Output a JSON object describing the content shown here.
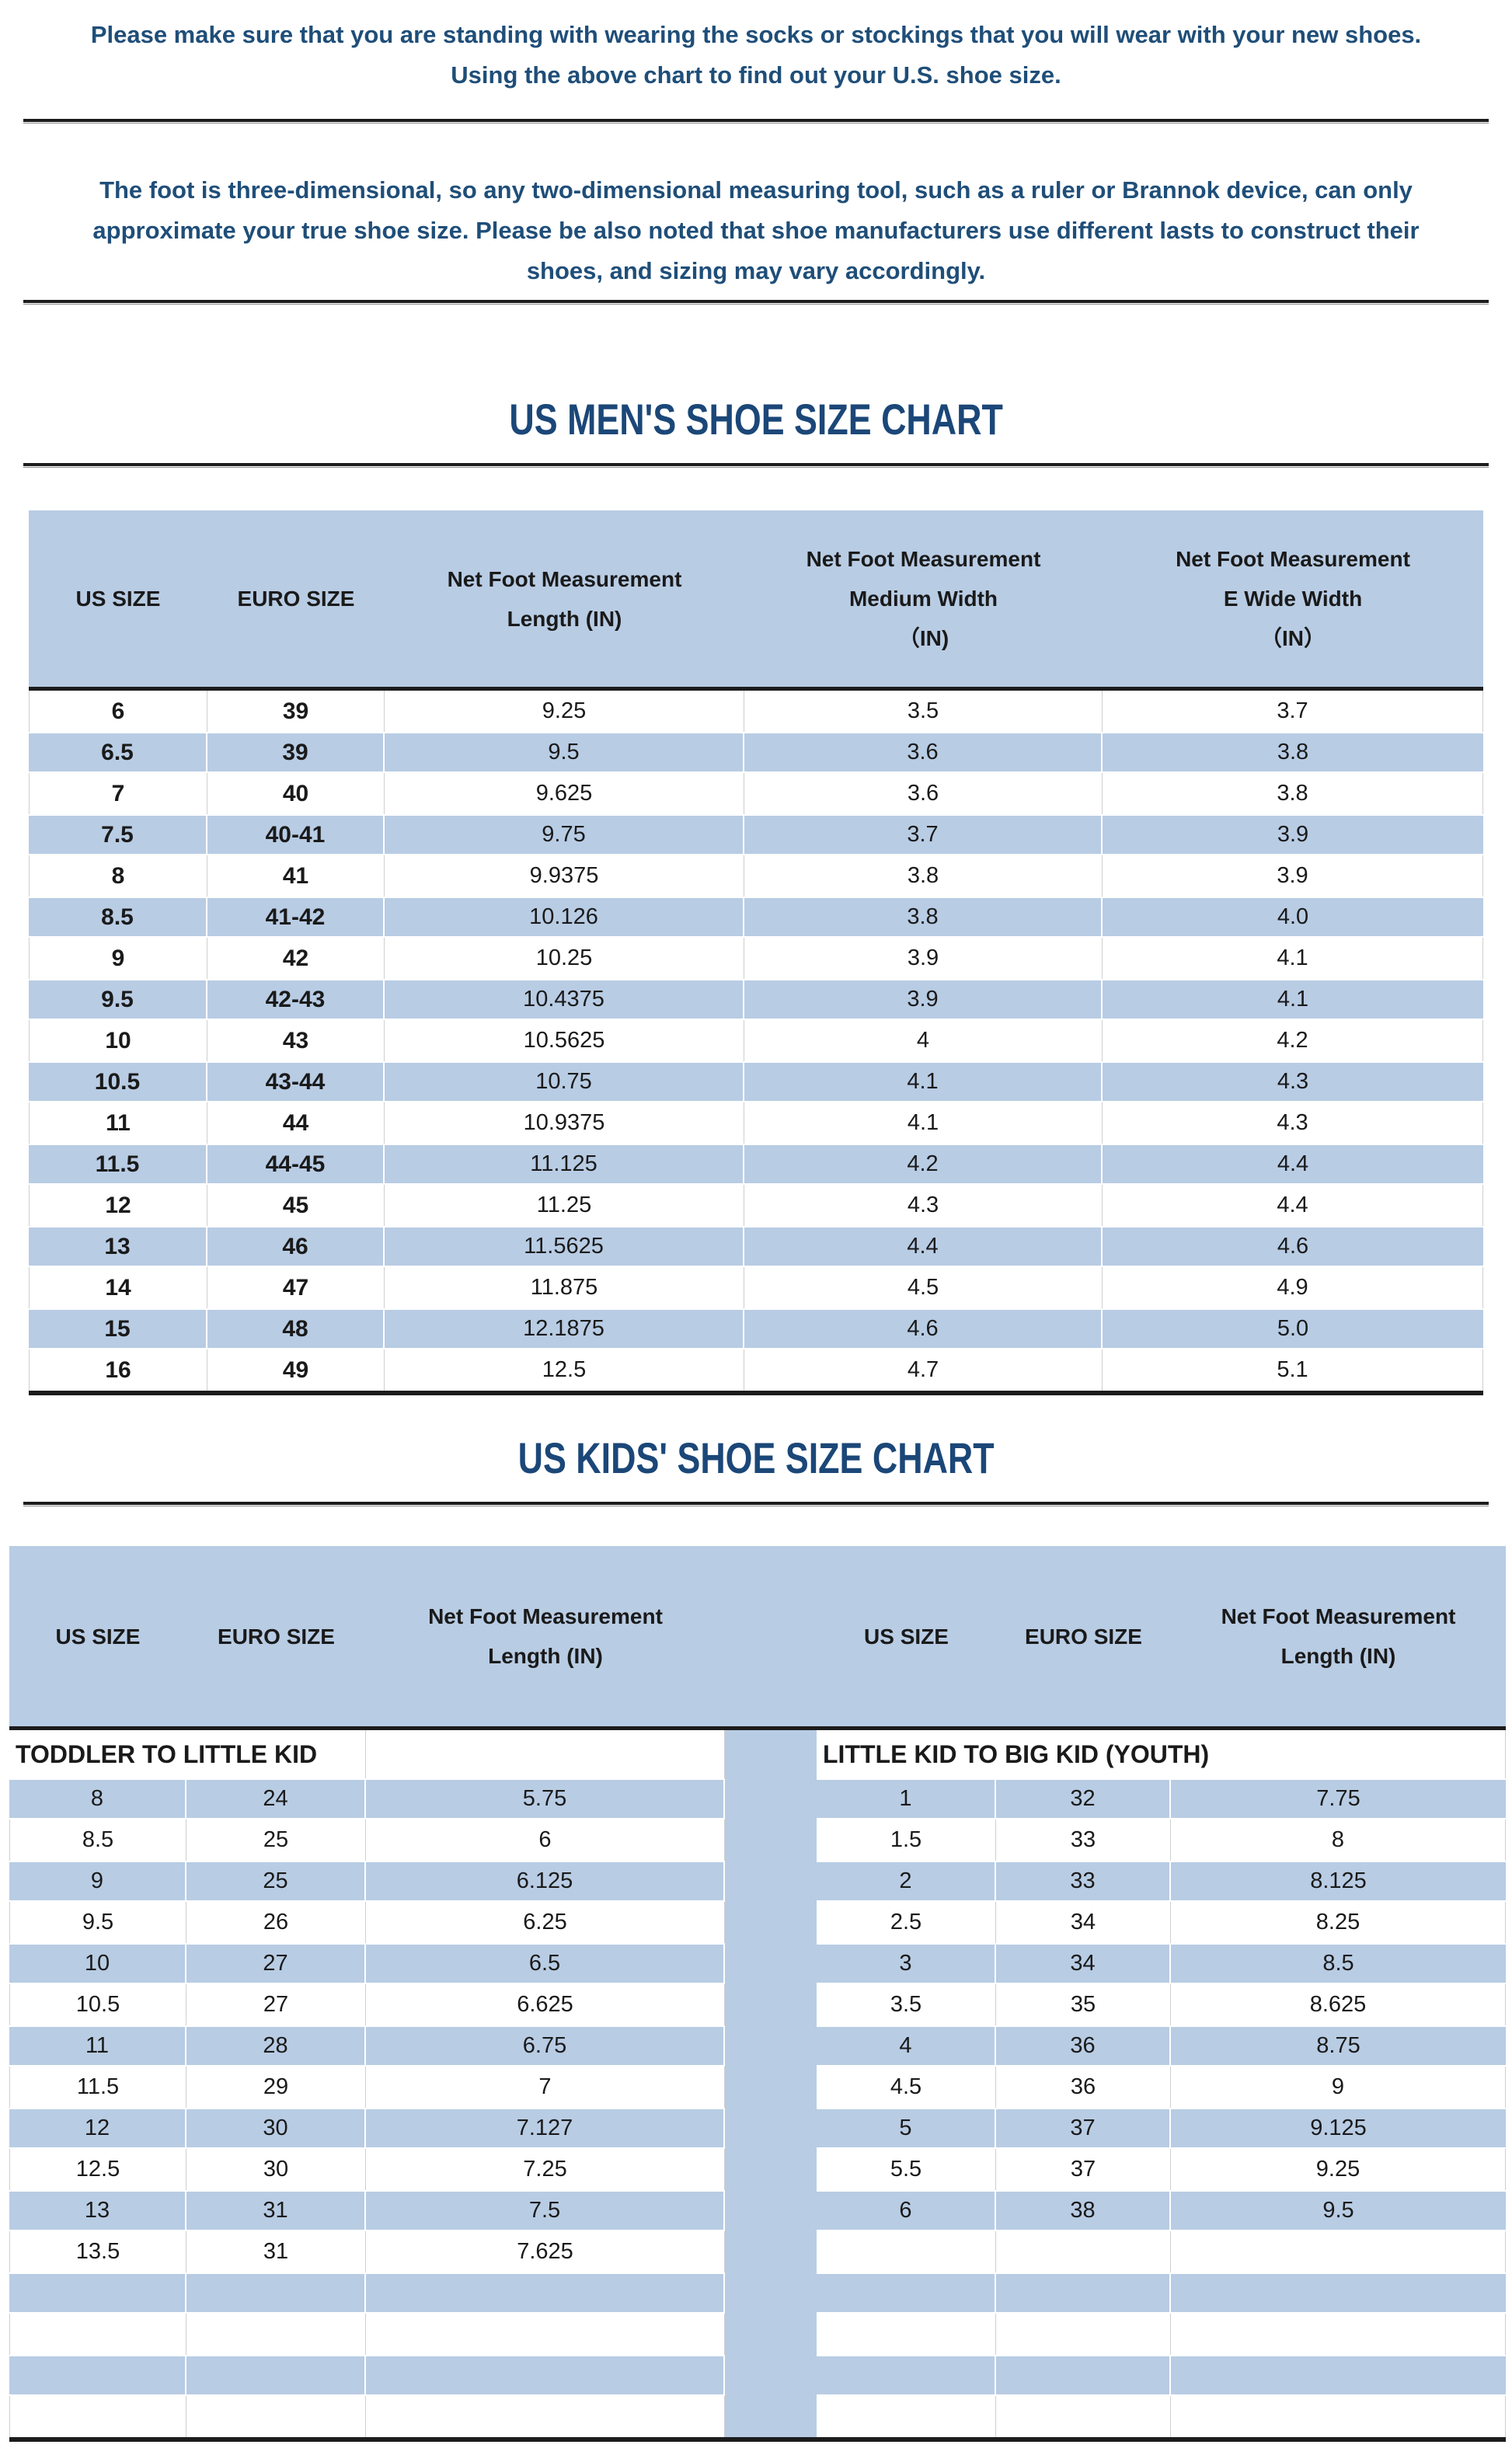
{
  "colors": {
    "accent_blue": "#b8cce4",
    "text_blue": "#1f4e79",
    "line_dark": "#1c1c1c"
  },
  "intro": {
    "p1_lines": [
      "Please make sure that you are standing with wearing the socks or stockings that you will wear with your new shoes.",
      "Using the above chart to find out your U.S. shoe size."
    ],
    "p2_lines": [
      "The foot is three-dimensional, so any two-dimensional measuring tool, such as a ruler or Brannok device, can only",
      "approximate your true shoe size. Please be also noted that shoe manufacturers use different lasts to construct their",
      "shoes, and sizing may vary accordingly."
    ]
  },
  "mens_chart": {
    "title": "US MEN'S SHOE SIZE CHART",
    "headers": [
      [
        "US SIZE"
      ],
      [
        "EURO SIZE"
      ],
      [
        "Net Foot Measurement",
        "Length (IN)"
      ],
      [
        "Net Foot Measurement",
        "Medium Width",
        "（IN)"
      ],
      [
        "Net Foot Measurement",
        "E Wide Width",
        "（IN）"
      ]
    ],
    "rows": [
      [
        "6",
        "39",
        "9.25",
        "3.5",
        "3.7"
      ],
      [
        "6.5",
        "39",
        "9.5",
        "3.6",
        "3.8"
      ],
      [
        "7",
        "40",
        "9.625",
        "3.6",
        "3.8"
      ],
      [
        "7.5",
        "40-41",
        "9.75",
        "3.7",
        "3.9"
      ],
      [
        "8",
        "41",
        "9.9375",
        "3.8",
        "3.9"
      ],
      [
        "8.5",
        "41-42",
        "10.126",
        "3.8",
        "4.0"
      ],
      [
        "9",
        "42",
        "10.25",
        "3.9",
        "4.1"
      ],
      [
        "9.5",
        "42-43",
        "10.4375",
        "3.9",
        "4.1"
      ],
      [
        "10",
        "43",
        "10.5625",
        "4",
        "4.2"
      ],
      [
        "10.5",
        "43-44",
        "10.75",
        "4.1",
        "4.3"
      ],
      [
        "11",
        "44",
        "10.9375",
        "4.1",
        "4.3"
      ],
      [
        "11.5",
        "44-45",
        "11.125",
        "4.2",
        "4.4"
      ],
      [
        "12",
        "45",
        "11.25",
        "4.3",
        "4.4"
      ],
      [
        "13",
        "46",
        "11.5625",
        "4.4",
        "4.6"
      ],
      [
        "14",
        "47",
        "11.875",
        "4.5",
        "4.9"
      ],
      [
        "15",
        "48",
        "12.1875",
        "4.6",
        "5.0"
      ],
      [
        "16",
        "49",
        "12.5",
        "4.7",
        "5.1"
      ]
    ]
  },
  "kids_chart": {
    "title": "US KIDS' SHOE SIZE CHART",
    "headers_left": [
      [
        "US SIZE"
      ],
      [
        "EURO SIZE"
      ],
      [
        "Net Foot Measurement",
        "Length (IN)"
      ]
    ],
    "headers_right": [
      [
        "US SIZE"
      ],
      [
        "EURO SIZE"
      ],
      [
        "Net Foot Measurement",
        "Length (IN)"
      ]
    ],
    "section_left": "TODDLER TO LITTLE KID",
    "section_right": "LITTLE KID TO BIG KID (YOUTH)",
    "rows": [
      [
        "8",
        "24",
        "5.75",
        "1",
        "32",
        "7.75"
      ],
      [
        "8.5",
        "25",
        "6",
        "1.5",
        "33",
        "8"
      ],
      [
        "9",
        "25",
        "6.125",
        "2",
        "33",
        "8.125"
      ],
      [
        "9.5",
        "26",
        "6.25",
        "2.5",
        "34",
        "8.25"
      ],
      [
        "10",
        "27",
        "6.5",
        "3",
        "34",
        "8.5"
      ],
      [
        "10.5",
        "27",
        "6.625",
        "3.5",
        "35",
        "8.625"
      ],
      [
        "11",
        "28",
        "6.75",
        "4",
        "36",
        "8.75"
      ],
      [
        "11.5",
        "29",
        "7",
        "4.5",
        "36",
        "9"
      ],
      [
        "12",
        "30",
        "7.127",
        "5",
        "37",
        "9.125"
      ],
      [
        "12.5",
        "30",
        "7.25",
        "5.5",
        "37",
        "9.25"
      ],
      [
        "13",
        "31",
        "7.5",
        "6",
        "38",
        "9.5"
      ],
      [
        "13.5",
        "31",
        "7.625",
        "",
        "",
        ""
      ],
      [
        "",
        "",
        "",
        "",
        "",
        ""
      ],
      [
        "",
        "",
        "",
        "",
        "",
        ""
      ],
      [
        "",
        "",
        "",
        "",
        "",
        ""
      ],
      [
        "",
        "",
        "",
        "",
        "",
        ""
      ]
    ]
  }
}
